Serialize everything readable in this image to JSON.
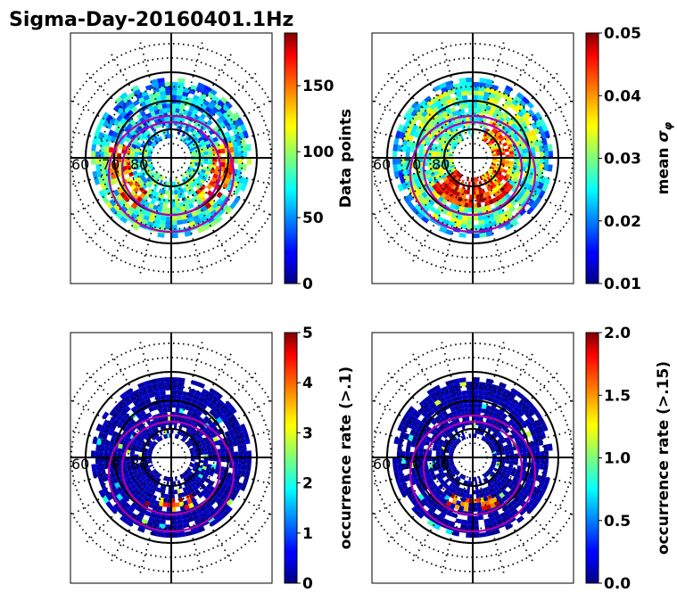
{
  "title": "Sigma-Day-20160401.1Hz",
  "chart_data": [
    {
      "type": "heatmap",
      "projection": "polar",
      "latitude_labels": [
        "60",
        "70",
        "80"
      ],
      "colorbar": {
        "label": "Data points",
        "range": [
          0,
          190
        ],
        "ticks": [
          "0",
          "50",
          "100",
          "150"
        ],
        "tick_values": [
          0,
          50,
          100,
          150
        ]
      },
      "pattern": "counts"
    },
    {
      "type": "heatmap",
      "projection": "polar",
      "latitude_labels": [
        "60",
        "70",
        "80"
      ],
      "colorbar": {
        "label_prefix": "mean ",
        "label_symbol": "σ",
        "label_sub": "φ",
        "range": [
          0.01,
          0.05
        ],
        "ticks": [
          "0.01",
          "0.02",
          "0.03",
          "0.04",
          "0.05"
        ],
        "tick_values": [
          0.01,
          0.02,
          0.03,
          0.04,
          0.05
        ]
      },
      "pattern": "mean"
    },
    {
      "type": "heatmap",
      "projection": "polar",
      "latitude_labels": [
        "60",
        "70",
        "80"
      ],
      "colorbar": {
        "label": "occurrence rate (>.1)",
        "range": [
          0,
          5
        ],
        "ticks": [
          "0",
          "1",
          "2",
          "3",
          "4",
          "5"
        ],
        "tick_values": [
          0,
          1,
          2,
          3,
          4,
          5
        ]
      },
      "pattern": "rate"
    },
    {
      "type": "heatmap",
      "projection": "polar",
      "latitude_labels": [
        "60",
        "70",
        "80"
      ],
      "colorbar": {
        "label": "occurrence rate (>.15)",
        "range": [
          0,
          2
        ],
        "ticks": [
          "0.0",
          "0.5",
          "1.0",
          "1.5",
          "2.0"
        ],
        "tick_values": [
          0,
          0.5,
          1.0,
          1.5,
          2.0
        ]
      },
      "pattern": "rate"
    }
  ],
  "colors": {
    "oval_line": "#b000b0",
    "grid": "#000000"
  }
}
